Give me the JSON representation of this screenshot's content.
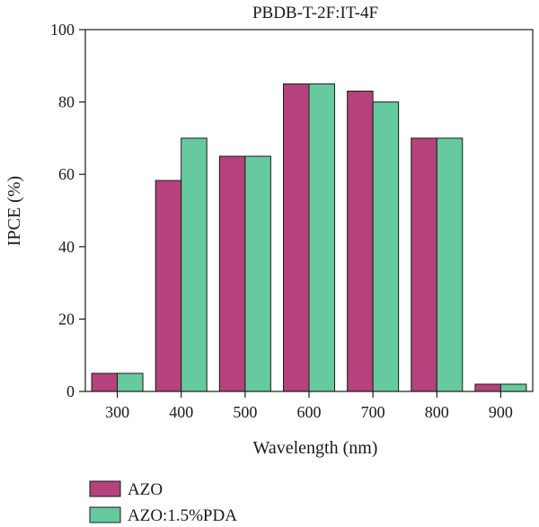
{
  "chart_data": {
    "type": "bar",
    "title": "PBDB-T-2F:IT-4F",
    "xlabel": "Wavelength (nm)",
    "ylabel": "IPCE (%)",
    "ylim": [
      0,
      100
    ],
    "yticks": [
      0,
      20,
      40,
      60,
      80,
      100
    ],
    "categories": [
      "300",
      "400",
      "500",
      "600",
      "700",
      "800",
      "900"
    ],
    "series": [
      {
        "name": "AZO",
        "color": "#b5427c",
        "values": [
          5,
          58.3,
          65,
          85,
          83,
          70,
          2
        ]
      },
      {
        "name": "AZO:1.5%PDA",
        "color": "#66c99f",
        "values": [
          5,
          70,
          65,
          85,
          80,
          70,
          2
        ]
      }
    ],
    "grid": false,
    "legend_position": "bottom-left"
  }
}
